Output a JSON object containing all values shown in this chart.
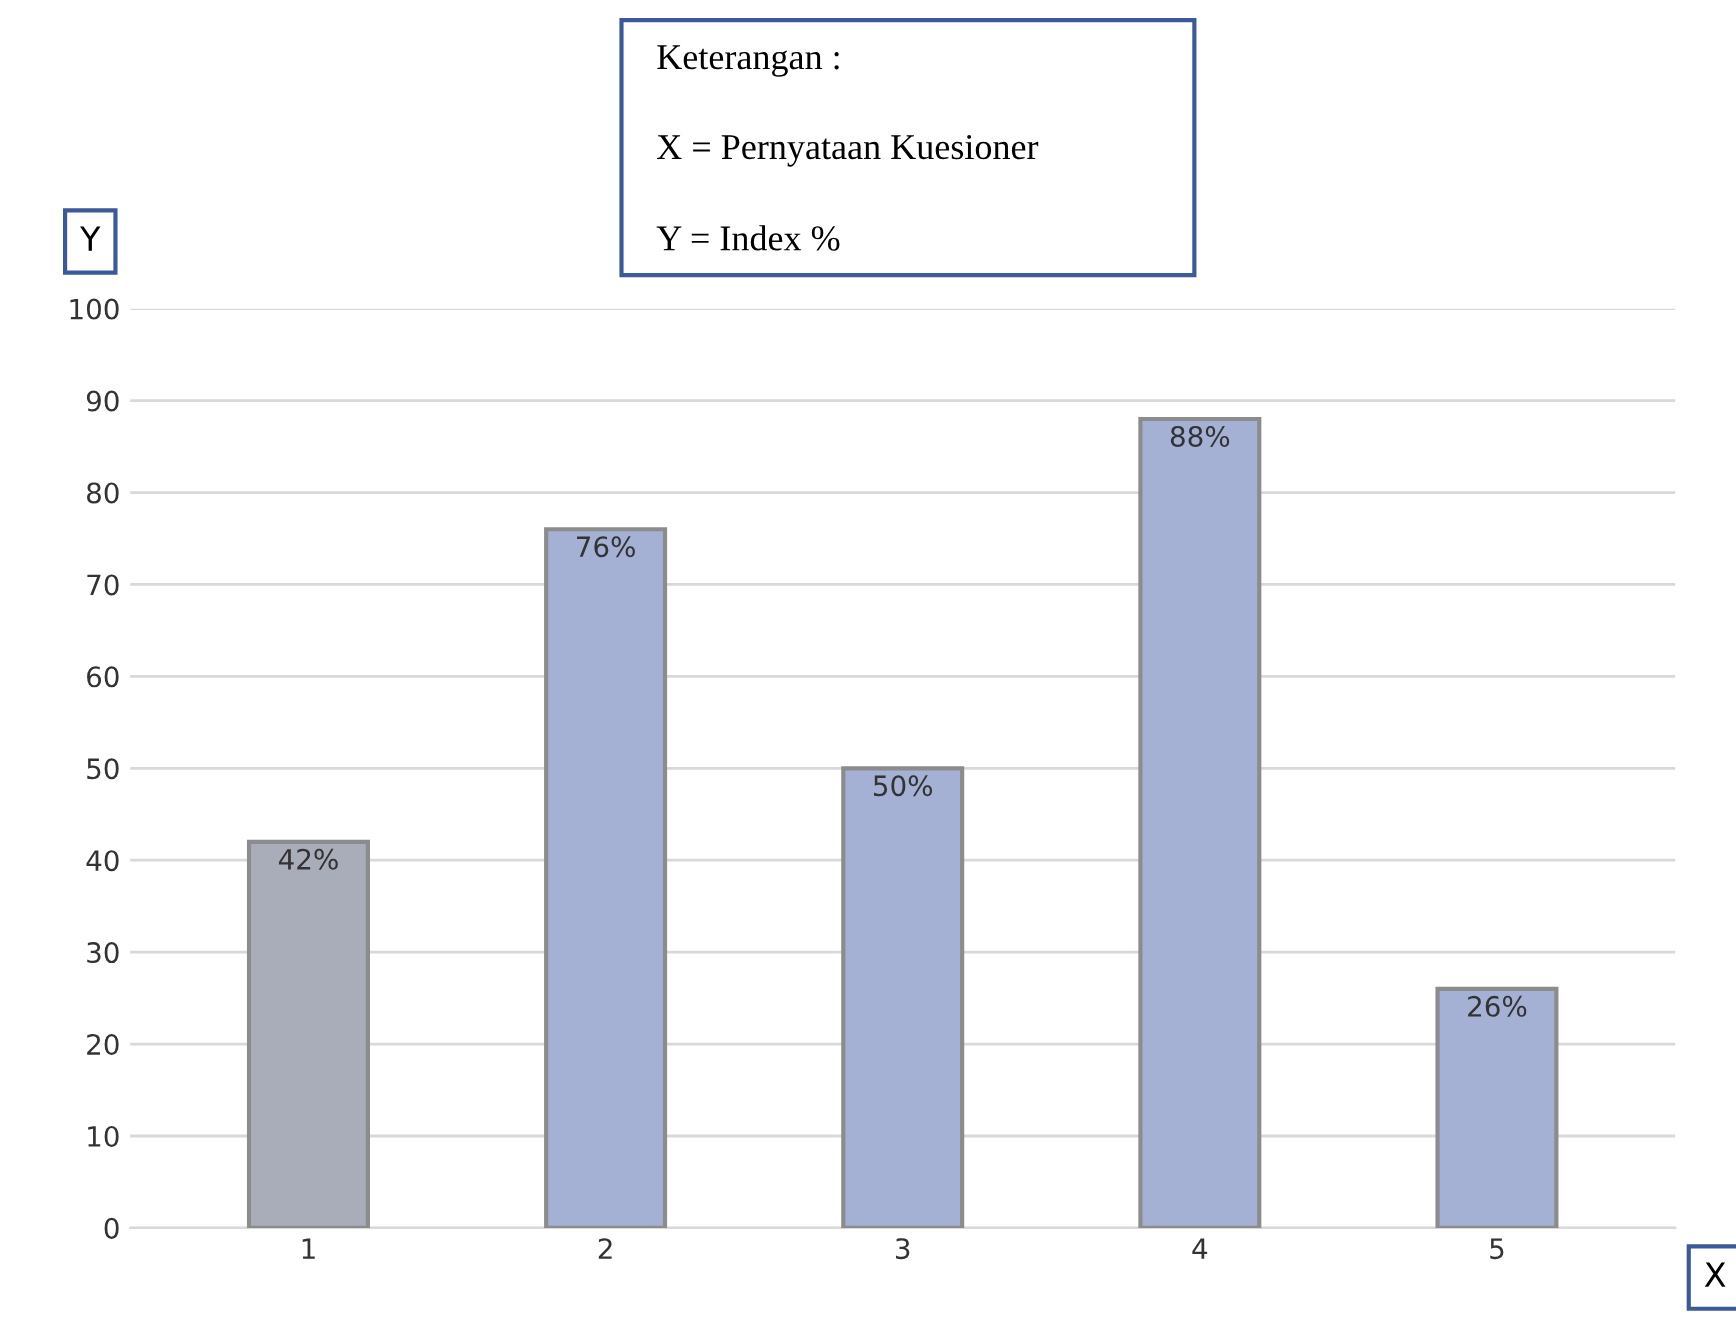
{
  "chart_data": {
    "type": "bar",
    "categories": [
      "1",
      "2",
      "3",
      "4",
      "5"
    ],
    "values": [
      42,
      76,
      50,
      88,
      26
    ],
    "value_labels": [
      "42%",
      "76%",
      "50%",
      "88%",
      "26%"
    ],
    "colors": [
      "#a9adb9",
      "#a4b0d4",
      "#a4b0d4",
      "#a4b0d4",
      "#a4b0d4"
    ],
    "ylim": [
      0,
      100
    ],
    "yticks": [
      0,
      10,
      20,
      30,
      40,
      50,
      60,
      70,
      80,
      90,
      100
    ],
    "xlabel": "X",
    "ylabel": "Y",
    "annotations": [
      "Keterangan :",
      "X = Pernyataan Kuesioner",
      "Y = Index %"
    ],
    "grid": "y"
  }
}
